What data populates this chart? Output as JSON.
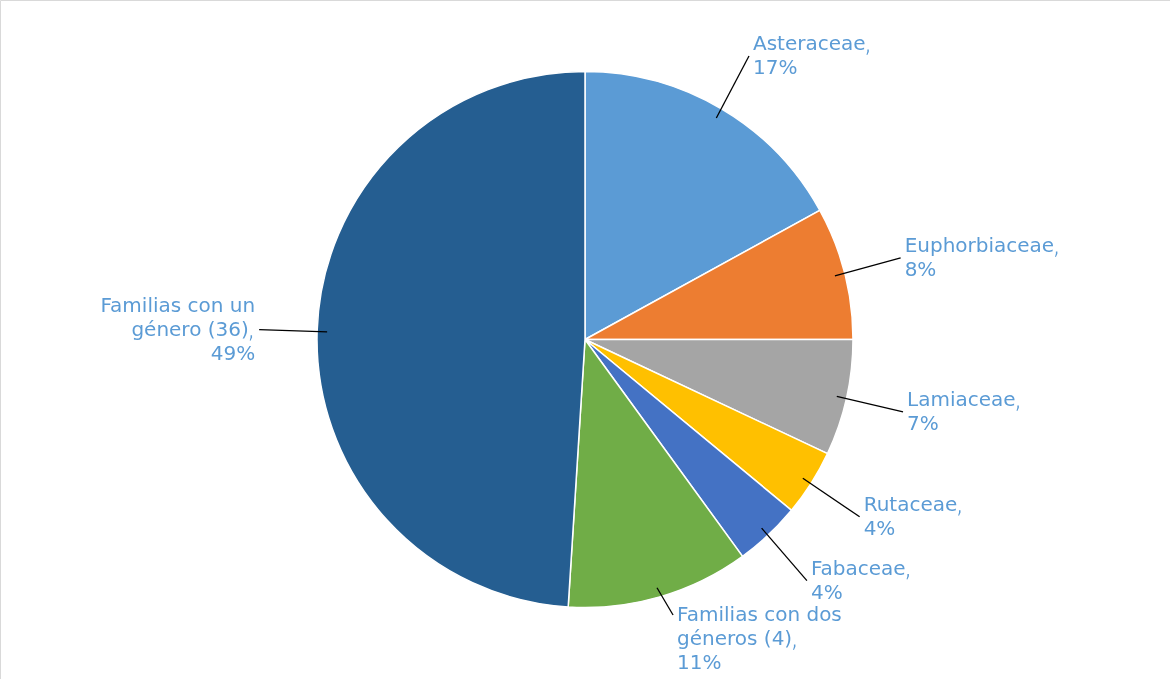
{
  "chart_data": {
    "type": "pie",
    "categories": [
      "Asteraceae",
      "Euphorbiaceae",
      "Lamiaceae",
      "Rutaceae",
      "Fabaceae",
      "Familias con dos géneros (4)",
      "Familias con un género (36)"
    ],
    "values": [
      17,
      8,
      7,
      4,
      4,
      11,
      49
    ],
    "value_labels": [
      "17%",
      "8%",
      "7%",
      "4%",
      "4%",
      "11%",
      "49%"
    ],
    "colors": [
      "#5b9bd5",
      "#ed7d31",
      "#a5a5a5",
      "#ffc000",
      "#4472c4",
      "#70ad47",
      "#255e91"
    ]
  }
}
